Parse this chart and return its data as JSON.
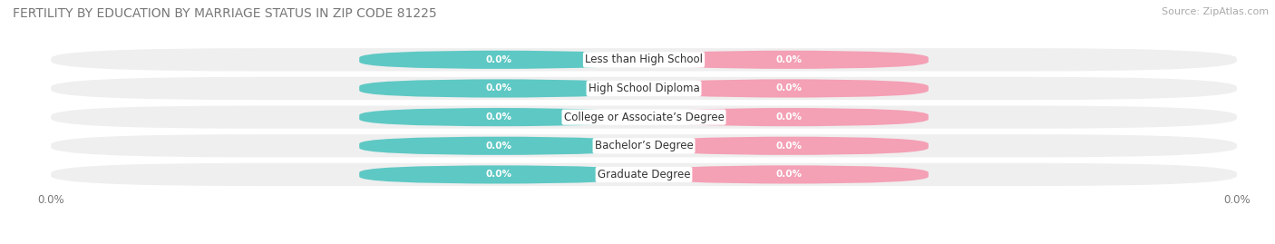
{
  "title": "FERTILITY BY EDUCATION BY MARRIAGE STATUS IN ZIP CODE 81225",
  "source": "Source: ZipAtlas.com",
  "categories": [
    "Less than High School",
    "High School Diploma",
    "College or Associate’s Degree",
    "Bachelor’s Degree",
    "Graduate Degree"
  ],
  "married_values": [
    0.0,
    0.0,
    0.0,
    0.0,
    0.0
  ],
  "unmarried_values": [
    0.0,
    0.0,
    0.0,
    0.0,
    0.0
  ],
  "married_color": "#5ec8c4",
  "unmarried_color": "#f4a0b5",
  "row_bg_color": "#efefef",
  "fig_bg_color": "#ffffff",
  "title_fontsize": 10,
  "source_fontsize": 8,
  "label_fontsize": 7.5,
  "cat_fontsize": 8.5,
  "legend_fontsize": 9,
  "tick_label": "0.0%",
  "figsize": [
    14.06,
    2.69
  ],
  "dpi": 100
}
